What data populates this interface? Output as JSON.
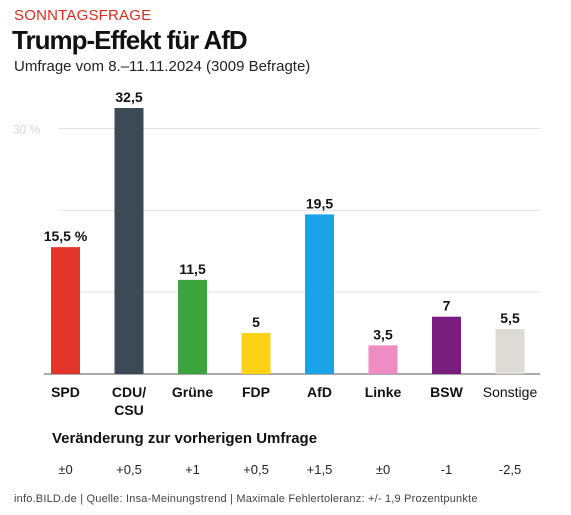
{
  "header": {
    "kicker": "SONNTAGSFRAGE",
    "title": "Trump-Effekt für AfD",
    "subtitle": "Umfrage vom 8.–11.11.2024 (3009 Befragte)"
  },
  "chart_data": {
    "type": "bar",
    "title": "Trump-Effekt für AfD",
    "categories": [
      "SPD",
      "CDU/ CSU",
      "Grüne",
      "FDP",
      "AfD",
      "Linke",
      "BSW",
      "Sonstige"
    ],
    "values": [
      15.5,
      32.5,
      11.5,
      5,
      19.5,
      3.5,
      7,
      5.5
    ],
    "value_labels": [
      "15,5 %",
      "32,5",
      "11,5",
      "5",
      "19,5",
      "3,5",
      "7",
      "5,5"
    ],
    "colors": [
      "#e3342a",
      "#3b4a54",
      "#3aa53a",
      "#fcd116",
      "#1aa3e6",
      "#ef8cc4",
      "#7b1d7e",
      "#dddbd6"
    ],
    "ylim": [
      0,
      32.5
    ],
    "gridlines": [
      10,
      20,
      30
    ],
    "ytick_label": "30 %",
    "grid": true,
    "xlabel": "",
    "ylabel": ""
  },
  "changes": {
    "heading": "Veränderung zur vorherigen Umfrage",
    "values": [
      "±0",
      "+0,5",
      "+1",
      "+0,5",
      "+1,5",
      "±0",
      "-1",
      "-2,5"
    ]
  },
  "footer": "info.BILD.de | Quelle: Insa-Meinungstrend | Maximale Fehlertoleranz: +/- 1,9 Prozentpunkte"
}
